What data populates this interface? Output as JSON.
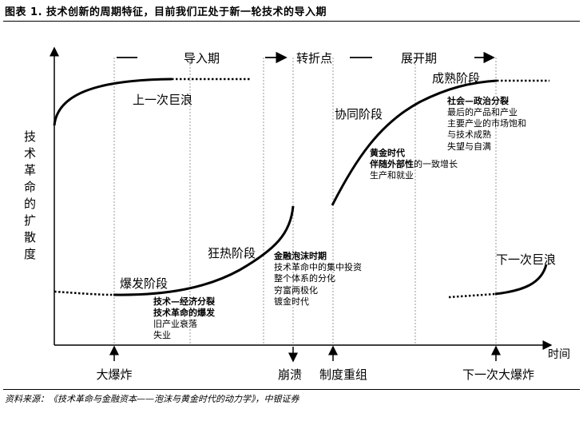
{
  "title": "图表 1. 技术创新的周期特征，目前我们正处于新一轮技术的导入期",
  "source": "资料来源：《技术革命与金融资本——泡沫与黄金时代的动力学》，中银证券",
  "y_axis_label": [
    "技",
    "术",
    "革",
    "命",
    "的",
    "扩",
    "散",
    "度"
  ],
  "x_axis_label": "时间",
  "periods": {
    "installation": "导入期",
    "turning_point": "转折点",
    "deployment": "展开期"
  },
  "events": {
    "big_bang": "大爆炸",
    "collapse": "崩溃",
    "restructuring": "制度重组",
    "next_big_bang": "下一次大爆炸"
  },
  "curves": {
    "previous_wave": "上一次巨浪",
    "next_wave": "下一次巨浪"
  },
  "phases": {
    "irruption": "爆发阶段",
    "frenzy": "狂热阶段",
    "synergy": "协同阶段",
    "maturity": "成熟阶段"
  },
  "notes": {
    "irruption": [
      "技术—经济分裂",
      "技术革命的爆发",
      "旧产业衰落",
      "失业"
    ],
    "frenzy": [
      "金融泡沫时期",
      "技术革命中的集中投资",
      "整个体系的分化",
      "穷富两极化",
      "镀金时代"
    ],
    "synergy_line1": "黄金时代",
    "synergy_line2a": "伴随外部性",
    "synergy_line2b": "的一致增长",
    "synergy_line3": "生产和就业",
    "maturity": [
      "社会—政治分裂",
      "最后的产品和产业",
      "主要产业的市场饱和",
      "与技术成熟",
      "失望与自满"
    ]
  }
}
